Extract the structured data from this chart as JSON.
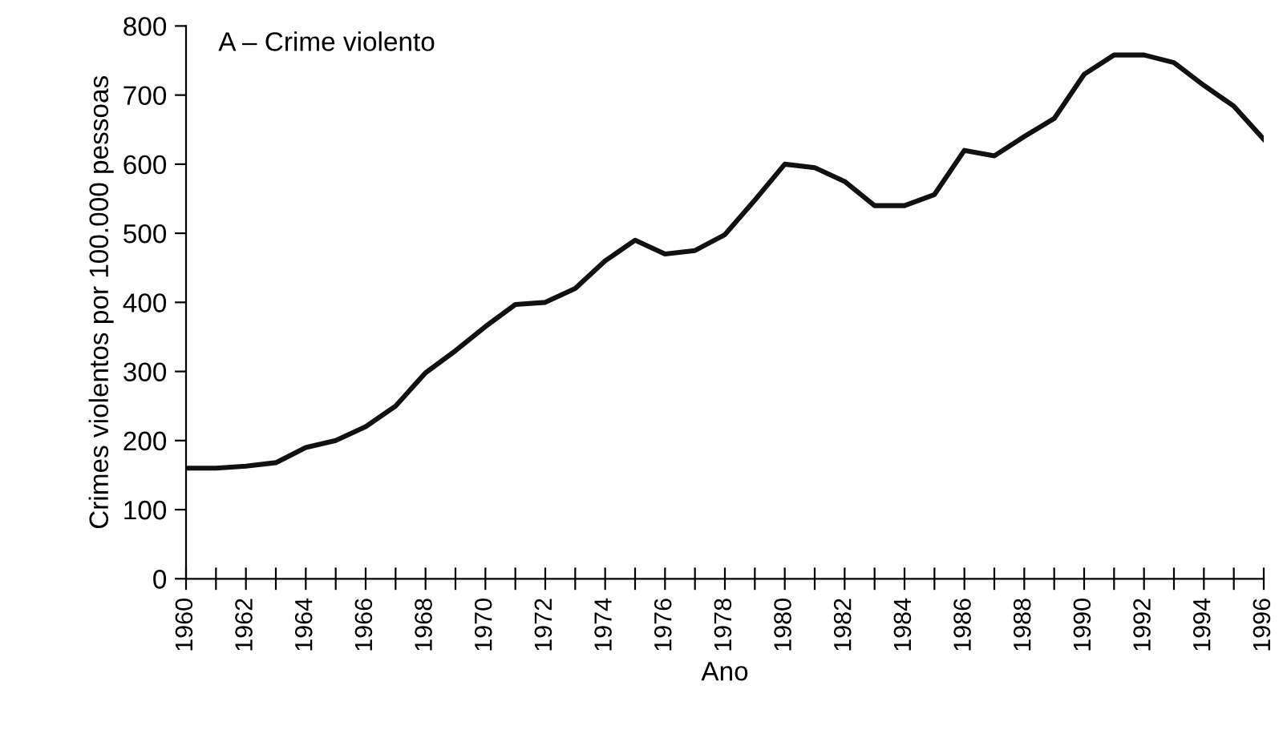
{
  "chart_data": {
    "type": "line",
    "title": "A – Crime violento",
    "xlabel": "Ano",
    "ylabel": "Crimes violentos por 100.000 pessoas",
    "x": [
      1960,
      1961,
      1962,
      1963,
      1964,
      1965,
      1966,
      1967,
      1968,
      1969,
      1970,
      1971,
      1972,
      1973,
      1974,
      1975,
      1976,
      1977,
      1978,
      1979,
      1980,
      1981,
      1982,
      1983,
      1984,
      1985,
      1986,
      1987,
      1988,
      1989,
      1990,
      1991,
      1992,
      1993,
      1994,
      1995,
      1996
    ],
    "series": [
      {
        "color": "#111111",
        "values": [
          160,
          160,
          163,
          168,
          190,
          200,
          220,
          250,
          298,
          330,
          365,
          397,
          400,
          420,
          460,
          490,
          470,
          475,
          498,
          548,
          600,
          595,
          575,
          540,
          540,
          556,
          620,
          612,
          640,
          666,
          730,
          758,
          758,
          747,
          714,
          684,
          636
        ]
      }
    ],
    "xlim": [
      1960,
      1996
    ],
    "ylim": [
      0,
      800
    ],
    "xticks": [
      1960,
      {
        "value": 1961,
        "label": null
      },
      1962,
      {
        "value": 1963,
        "label": null
      },
      1964,
      {
        "value": 1965,
        "label": null
      },
      1966,
      {
        "value": 1967,
        "label": null
      },
      1968,
      {
        "value": 1969,
        "label": null
      },
      1970,
      {
        "value": 1971,
        "label": null
      },
      1972,
      {
        "value": 1973,
        "label": null
      },
      1974,
      {
        "value": 1975,
        "label": null
      },
      1976,
      {
        "value": 1977,
        "label": null
      },
      1978,
      {
        "value": 1979,
        "label": null
      },
      1980,
      {
        "value": 1981,
        "label": null
      },
      1982,
      {
        "value": 1983,
        "label": null
      },
      1984,
      {
        "value": 1985,
        "label": null
      },
      1986,
      {
        "value": 1987,
        "label": null
      },
      1988,
      {
        "value": 1989,
        "label": null
      },
      1990,
      {
        "value": 1991,
        "label": null
      },
      1992,
      {
        "value": 1993,
        "label": null
      },
      1994,
      {
        "value": 1995,
        "label": null
      },
      1996
    ],
    "yticks": [
      0,
      100,
      200,
      300,
      400,
      500,
      600,
      700,
      800
    ],
    "grid": false,
    "legend": false,
    "marker": "none",
    "line_style": "solid"
  }
}
